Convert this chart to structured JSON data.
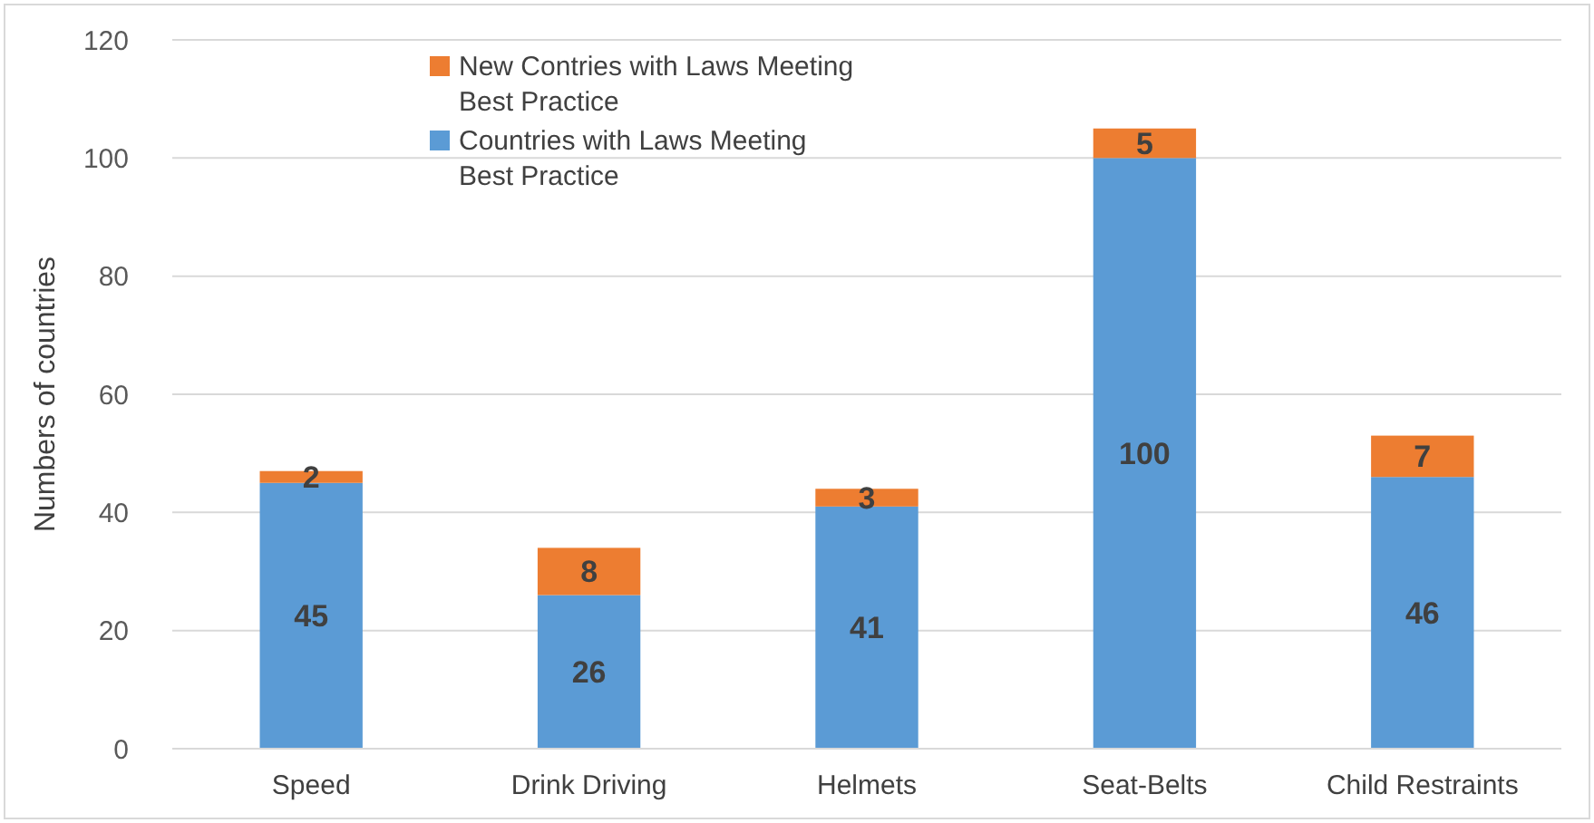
{
  "chart_data": {
    "type": "bar",
    "stacked": true,
    "ylabel": "Numbers of countries",
    "categories": [
      "Speed",
      "Drink Driving",
      "Helmets",
      "Seat-Belts",
      "Child Restraints"
    ],
    "series": [
      {
        "name": "Countries with Laws Meeting Best Practice",
        "color": "#5b9bd5",
        "values": [
          45,
          26,
          41,
          100,
          46
        ]
      },
      {
        "name": "New Contries with Laws Meeting Best Practice",
        "color": "#ed7d31",
        "values": [
          2,
          8,
          3,
          5,
          7
        ]
      }
    ],
    "ylim": [
      0,
      120
    ],
    "yticks": [
      0,
      20,
      40,
      60,
      80,
      100,
      120
    ],
    "grid": "y",
    "legend": "top left",
    "data_labels": true
  }
}
